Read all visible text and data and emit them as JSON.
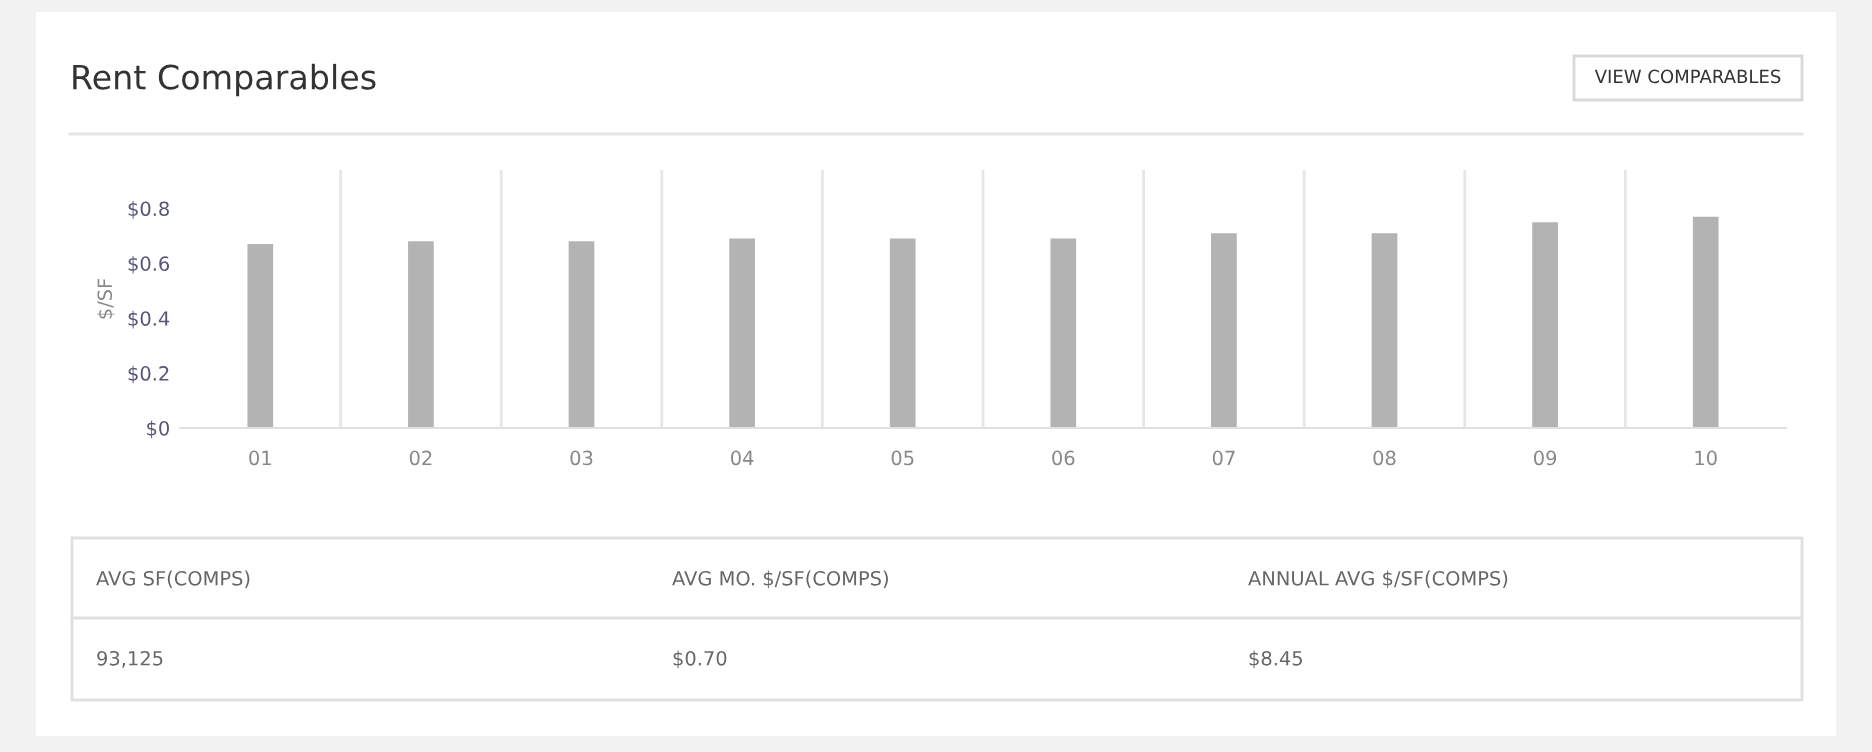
{
  "chart_data": {
    "type": "bar",
    "title": "Rent Comparables",
    "ylabel": "$/SF",
    "categories": [
      "01",
      "02",
      "03",
      "04",
      "05",
      "06",
      "07",
      "08",
      "09",
      "10"
    ],
    "values": [
      0.67,
      0.68,
      0.68,
      0.69,
      0.69,
      0.69,
      0.71,
      0.71,
      0.75,
      0.77
    ],
    "color": "#b3b3b3",
    "ylim": [
      0,
      0.94
    ],
    "yticks": [
      {
        "value": 0,
        "label": "$0"
      },
      {
        "value": 0.2,
        "label": "$0.2"
      },
      {
        "value": 0.4,
        "label": "$0.4"
      },
      {
        "value": 0.6,
        "label": "$0.6"
      },
      {
        "value": 0.8,
        "label": "$0.8"
      }
    ],
    "grid": "x",
    "annotations": [
      "VIEW COMPARABLES",
      "AVG SF(COMPS)",
      "AVG MO. $/SF(COMPS)",
      "ANNUAL AVG $/SF(COMPS)",
      "93,125",
      "$0.70",
      "$8.45"
    ]
  }
}
